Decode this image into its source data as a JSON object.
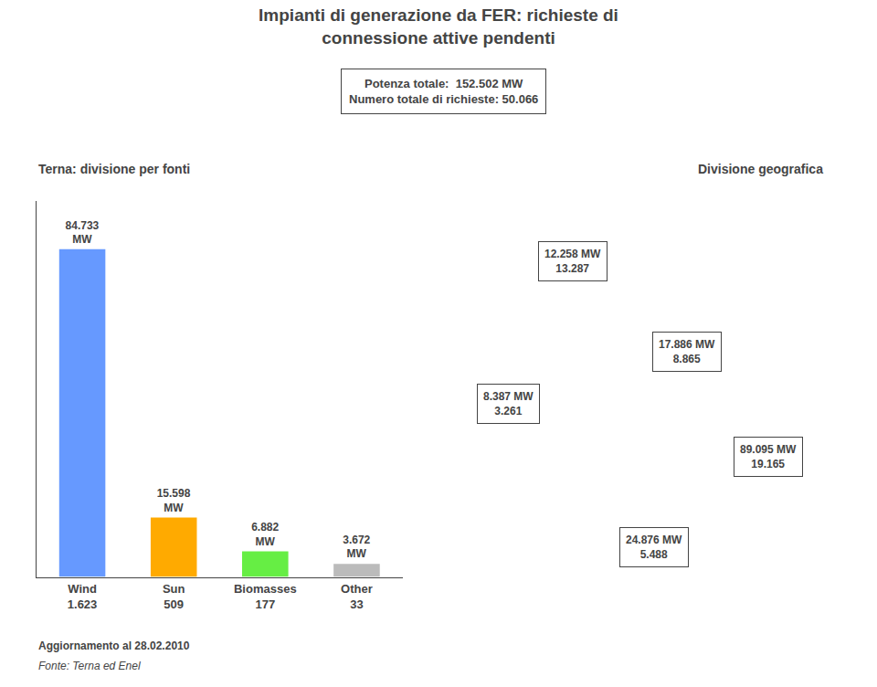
{
  "chart_data": {
    "type": "bar",
    "title": "Impianti di generazione da FER: richieste di\nconnessione attive pendenti",
    "subtitle": "Potenza totale:  152.502 MW\nNumero totale di richieste: 50.066",
    "panel_titles": [
      "Terna: divisione per fonti",
      "Divisione geografica"
    ],
    "categories": [
      "Wind",
      "Sun",
      "Biomasses",
      "Other"
    ],
    "values": [
      84.733,
      15.598,
      6.882,
      3.672
    ],
    "value_labels": [
      "84.733\nMW",
      "15.598\nMW",
      "6.882\nMW",
      "3.672\nMW"
    ],
    "counts": [
      "1.623",
      "509",
      "177",
      "33"
    ],
    "colors": [
      "#6699ff",
      "#ffaa00",
      "#66ee44",
      "#bbbbbb"
    ],
    "data_labels": true,
    "ylim": [
      0,
      97
    ],
    "tick_labels": "x",
    "grid": false,
    "region_labels": [
      "12.258 MW\n13.287",
      "17.886 MW\n8.865",
      "8.387 MW\n3.261",
      "89.095 MW\n19.165",
      "24.876 MW\n5.488"
    ],
    "notes": [
      "Aggiornamento al 28.02.2010",
      "Fonte: Terna ed Enel"
    ]
  }
}
